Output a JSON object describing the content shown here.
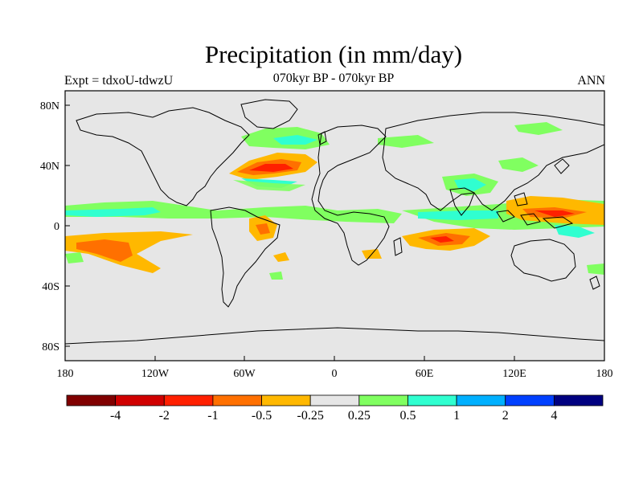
{
  "figure": {
    "title": "Precipitation (in mm/day)",
    "subtitle_left": "Expt = tdxoU-tdwzU",
    "subtitle_center": "070kyr BP - 070kyr BP",
    "subtitle_right": "ANN"
  },
  "map": {
    "projection": "cylindrical-equidistant",
    "lon_range": [
      -180,
      180
    ],
    "lat_range": [
      -90,
      90
    ],
    "background_color": "#e6e6e6",
    "x_tick_labels": [
      "180",
      "120W",
      "60W",
      "0",
      "60E",
      "120E",
      "180"
    ],
    "y_tick_labels": [
      "80N",
      "40N",
      "0",
      "40S",
      "80S"
    ]
  },
  "colorbar": {
    "colors": [
      "#800000",
      "#d00000",
      "#ff2000",
      "#ff7000",
      "#ffb800",
      "#e6e6e6",
      "#80ff60",
      "#30ffd0",
      "#00b0ff",
      "#0040ff",
      "#000080"
    ],
    "labels": [
      "-4",
      "-2",
      "-1",
      "-0.5",
      "-0.25",
      "0.25",
      "0.5",
      "1",
      "2",
      "4"
    ]
  }
}
